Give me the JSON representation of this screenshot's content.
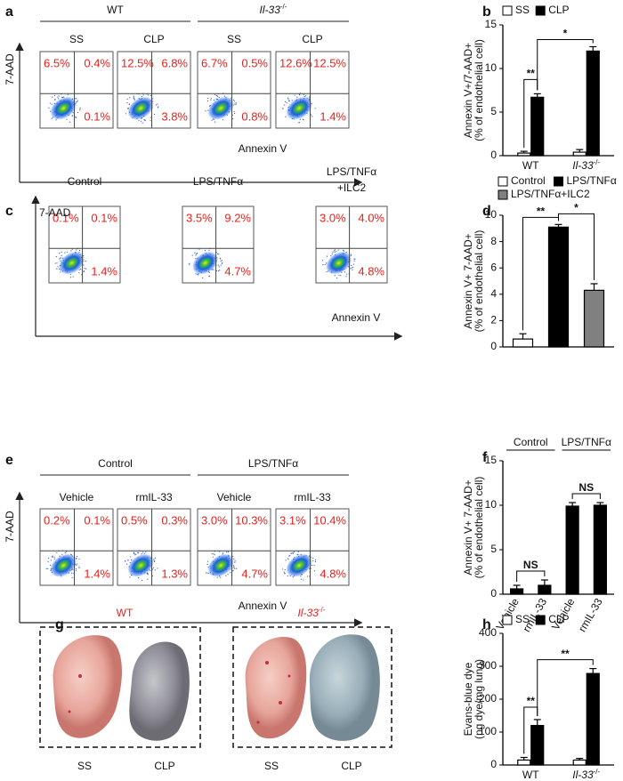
{
  "panel_labels": [
    "a",
    "b",
    "c",
    "d",
    "e",
    "f",
    "g",
    "h"
  ],
  "flow_a": {
    "headers": [
      "WT",
      {
        "text": "Il-33",
        "sup": "-/-"
      }
    ],
    "conditions": [
      "SS",
      "CLP",
      "SS",
      "CLP"
    ],
    "y_axis": "7-AAD",
    "x_axis": "Annexin V",
    "quadrants": [
      [
        "6.5%",
        "0.4%",
        "0.1%"
      ],
      [
        "12.5%",
        "6.8%",
        "3.8%"
      ],
      [
        "6.7%",
        "0.5%",
        "0.8%"
      ],
      [
        "12.6%",
        "12.5%",
        "1.4%"
      ]
    ]
  },
  "flow_c": {
    "titles": [
      "Control",
      "LPS/TNFα",
      [
        "LPS/TNFα",
        "+ILC2"
      ]
    ],
    "y_axis": "7-AAD",
    "x_axis": "Annexin V",
    "quadrants": [
      [
        "0.1%",
        "0.1%",
        "1.4%"
      ],
      [
        "3.5%",
        "9.2%",
        "4.7%"
      ],
      [
        "3.0%",
        "4.0%",
        "4.8%"
      ]
    ]
  },
  "flow_e": {
    "headers": [
      "Control",
      "LPS/TNFα"
    ],
    "conditions": [
      "Vehicle",
      "rmIL-33",
      "Vehicle",
      "rmIL-33"
    ],
    "y_axis": "7-AAD",
    "x_axis": "Annexin V",
    "quadrants": [
      [
        "0.2%",
        "0.1%",
        "1.4%"
      ],
      [
        "0.5%",
        "0.3%",
        "1.3%"
      ],
      [
        "3.0%",
        "10.3%",
        "4.7%"
      ],
      [
        "3.1%",
        "10.4%",
        "4.8%"
      ]
    ]
  },
  "photo_g": {
    "labels": [
      "WT",
      {
        "text": "Il-33",
        "sup": "-/-"
      }
    ],
    "conditions": [
      "SS",
      "CLP",
      "SS",
      "CLP"
    ]
  },
  "chart_data": [
    {
      "type": "bar",
      "y_label": [
        "Annexin V+/7-AAD+",
        "(% of endothelial cell)"
      ],
      "categories": [
        "WT",
        {
          "text": "Il-33",
          "sup": "-/-"
        }
      ],
      "series": [
        {
          "name": "SS",
          "color": "#ffffff",
          "values": [
            0.3,
            0.4
          ],
          "errors": [
            0.2,
            0.3
          ]
        },
        {
          "name": "CLP",
          "color": "#000000",
          "values": [
            6.7,
            12
          ],
          "errors": [
            0.4,
            0.5
          ]
        }
      ],
      "ylim": [
        0,
        15
      ],
      "yticks": [
        0,
        5,
        10,
        15
      ],
      "significance": [
        "**",
        "*"
      ]
    },
    {
      "type": "bar",
      "y_label": [
        "Annexin V+ 7-AAD+",
        "(% of  endothelial cell)"
      ],
      "series": [
        {
          "name": "Control",
          "color": "#ffffff",
          "values": [
            0.6
          ],
          "errors": [
            0.4
          ]
        },
        {
          "name": "LPS/TNFα",
          "color": "#000000",
          "values": [
            9.1
          ],
          "errors": [
            0.2
          ]
        },
        {
          "name": "LPS/TNFα+ILC2",
          "color": "#808080",
          "values": [
            4.3
          ],
          "errors": [
            0.5
          ]
        }
      ],
      "ylim": [
        0,
        10
      ],
      "yticks": [
        0,
        2,
        4,
        6,
        8,
        10
      ],
      "significance": [
        "**",
        "*"
      ]
    },
    {
      "type": "bar",
      "y_label": [
        "Annexin V+ 7-AAD+",
        "(% of endothelial cell)"
      ],
      "categories": [
        "Vehicle",
        "rmIL-33",
        "Vehicle",
        "rmIL-33"
      ],
      "group_labels": [
        "Control",
        "LPS/TNFα"
      ],
      "values": [
        0.6,
        1.0,
        9.9,
        10.0
      ],
      "errors": [
        0.4,
        0.6,
        0.4,
        0.3
      ],
      "color": "#000000",
      "ylim": [
        0,
        15
      ],
      "yticks": [
        0,
        5,
        10,
        15
      ],
      "significance": [
        "NS",
        "NS"
      ]
    },
    {
      "type": "bar",
      "y_label": [
        "Evans-blue dye",
        "(ng dye/mg lung)"
      ],
      "categories": [
        "WT",
        {
          "text": "Il-33",
          "sup": "-/-"
        }
      ],
      "series": [
        {
          "name": "SS",
          "color": "#ffffff",
          "values": [
            15,
            15
          ],
          "errors": [
            8,
            5
          ]
        },
        {
          "name": "CLP",
          "color": "#000000",
          "values": [
            120,
            278
          ],
          "errors": [
            18,
            15
          ]
        }
      ],
      "ylim": [
        0,
        400
      ],
      "yticks": [
        0,
        100,
        200,
        300,
        400
      ],
      "significance": [
        "**",
        "**"
      ]
    }
  ]
}
